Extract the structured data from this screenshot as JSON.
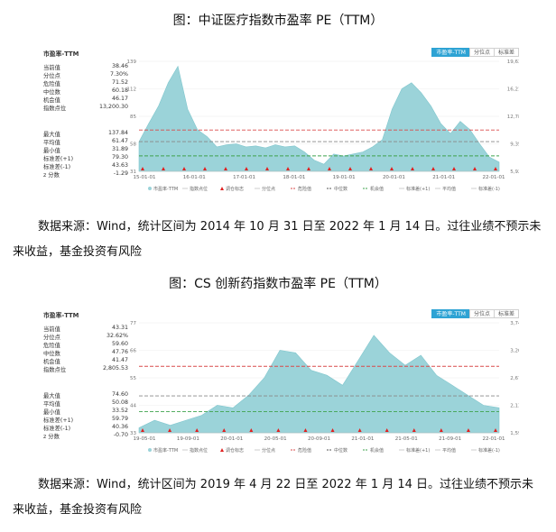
{
  "figure1": {
    "title": "图：中证医疗指数市盈率 PE（TTM）",
    "panel_title": "市盈率-TTM",
    "tabs": [
      "市盈率-TTM",
      "分位点",
      "标准差"
    ],
    "stats_top": [
      {
        "label": "当前值",
        "value": "38.46"
      },
      {
        "label": "分位点",
        "value": "7.30%"
      },
      {
        "label": "危险值",
        "value": "71.52"
      },
      {
        "label": "中位数",
        "value": "60.18"
      },
      {
        "label": "机会值",
        "value": "46.17"
      },
      {
        "label": "指数点位",
        "value": "13,200.30"
      }
    ],
    "stats_bottom": [
      {
        "label": "最大值",
        "value": "137.84"
      },
      {
        "label": "平均值",
        "value": "61.47"
      },
      {
        "label": "最小值",
        "value": "31.89"
      },
      {
        "label": "标准差(+1)",
        "value": "79.30"
      },
      {
        "label": "标准差(-1)",
        "value": "43.63"
      },
      {
        "label": "z 分数",
        "value": "-1.29"
      }
    ],
    "caption": "数据来源：Wind，统计区间为 2014 年 10 月 31 日至 2022 年 1 月 14 日。过往业绩不预示未来收益，基金投资有风险"
  },
  "figure2": {
    "title": "图：CS 创新药指数市盈率 PE（TTM）",
    "panel_title": "市盈率-TTM",
    "tabs": [
      "市盈率-TTM",
      "分位点",
      "标准差"
    ],
    "stats_top": [
      {
        "label": "当前值",
        "value": "43.31"
      },
      {
        "label": "分位点",
        "value": "32.62%"
      },
      {
        "label": "危险值",
        "value": "59.60"
      },
      {
        "label": "中位数",
        "value": "47.76"
      },
      {
        "label": "机会值",
        "value": "41.47"
      },
      {
        "label": "指数点位",
        "value": "2,805.53"
      }
    ],
    "stats_bottom": [
      {
        "label": "最大值",
        "value": "74.60"
      },
      {
        "label": "平均值",
        "value": "50.08"
      },
      {
        "label": "最小值",
        "value": "33.52"
      },
      {
        "label": "标准差(+1)",
        "value": "59.79"
      },
      {
        "label": "标准差(-1)",
        "value": "40.36"
      },
      {
        "label": "z 分数",
        "value": "-0.70"
      }
    ],
    "caption": "数据来源：Wind，统计区间为 2019 年 4 月 22 日至 2022 年 1 月 14 日。过往业绩不预示未来收益，基金投资有风险"
  },
  "chart_data": [
    {
      "type": "area",
      "title": "市盈率-TTM",
      "x": [
        "2014-10",
        "2015-01",
        "2015-03",
        "2015-05",
        "2015-06",
        "2015-07",
        "2015-09",
        "2015-12",
        "2016-03",
        "2016-06",
        "2016-09",
        "2016-12",
        "2017-03",
        "2017-06",
        "2017-09",
        "2017-12",
        "2018-03",
        "2018-06",
        "2018-09",
        "2018-12",
        "2019-03",
        "2019-06",
        "2019-09",
        "2019-12",
        "2020-03",
        "2020-05",
        "2020-07",
        "2020-08",
        "2020-09",
        "2020-10",
        "2020-12",
        "2021-02",
        "2021-03",
        "2021-06",
        "2021-07",
        "2021-09",
        "2021-12",
        "2022-01"
      ],
      "series": [
        {
          "name": "市盈率-TTM",
          "values": [
            60,
            78,
            95,
            118,
            134,
            92,
            72,
            65,
            55,
            57,
            58,
            55,
            56,
            54,
            57,
            55,
            56,
            50,
            42,
            38,
            48,
            46,
            48,
            50,
            55,
            62,
            92,
            112,
            118,
            108,
            95,
            78,
            68,
            80,
            72,
            58,
            45,
            40
          ]
        }
      ],
      "x_ticks": [
        "15-01-01",
        "16-01-01",
        "17-01-01",
        "18-01-01",
        "19-01-01",
        "20-01-01",
        "21-01-01",
        "22-01-01"
      ],
      "y_ticks_left": [
        31,
        58,
        85,
        112,
        139
      ],
      "y_ticks_right": [
        "5,926",
        "9,354",
        "12,782",
        "16,210",
        "19,638"
      ],
      "ylim": [
        31,
        139
      ],
      "ref_lines": {
        "danger": 71.52,
        "median": 60.18,
        "opportunity": 46.17
      },
      "legend": [
        "市盈率-TTM",
        "指数点位",
        "调仓标志",
        "分位点",
        "危险值",
        "中位数",
        "机会值",
        "标准差(+1)",
        "平均值",
        "标准差(-1)"
      ],
      "colors": {
        "area": "#9bd3d9",
        "danger": "#d94b4b",
        "median": "#888888",
        "opportunity": "#3fa34d",
        "marker": "#e02020"
      }
    },
    {
      "type": "area",
      "title": "市盈率-TTM",
      "x": [
        "2019-04",
        "2019-06",
        "2019-08",
        "2019-10",
        "2019-12",
        "2020-02",
        "2020-03",
        "2020-04",
        "2020-06",
        "2020-07",
        "2020-08",
        "2020-09",
        "2020-10",
        "2020-12",
        "2021-01",
        "2021-02",
        "2021-03",
        "2021-04",
        "2021-06",
        "2021-07",
        "2021-08",
        "2021-10",
        "2021-12",
        "2022-01"
      ],
      "series": [
        {
          "name": "市盈率-TTM",
          "values": [
            35,
            38,
            36,
            38,
            40,
            44,
            43,
            48,
            55,
            66,
            65,
            58,
            56,
            52,
            62,
            72,
            65,
            60,
            64,
            56,
            52,
            48,
            44,
            43
          ]
        }
      ],
      "x_ticks": [
        "19-05-01",
        "19-09-01",
        "20-01-01",
        "20-05-01",
        "20-09-01",
        "21-01-01",
        "21-05-01",
        "21-09-01",
        "22-01-01"
      ],
      "y_ticks_left": [
        33,
        44,
        55,
        66,
        77
      ],
      "y_ticks_right": [
        "1,594",
        "2,132",
        "2,670",
        "3,208",
        "3,746"
      ],
      "ylim": [
        33,
        77
      ],
      "ref_lines": {
        "danger": 59.6,
        "median": 47.76,
        "opportunity": 41.47
      },
      "legend": [
        "市盈率-TTM",
        "指数点位",
        "调仓标志",
        "分位点",
        "危险值",
        "中位数",
        "机会值",
        "标准差(+1)",
        "平均值",
        "标准差(-1)"
      ],
      "colors": {
        "area": "#9bd3d9",
        "danger": "#d94b4b",
        "median": "#888888",
        "opportunity": "#3fa34d",
        "marker": "#e02020"
      }
    }
  ]
}
